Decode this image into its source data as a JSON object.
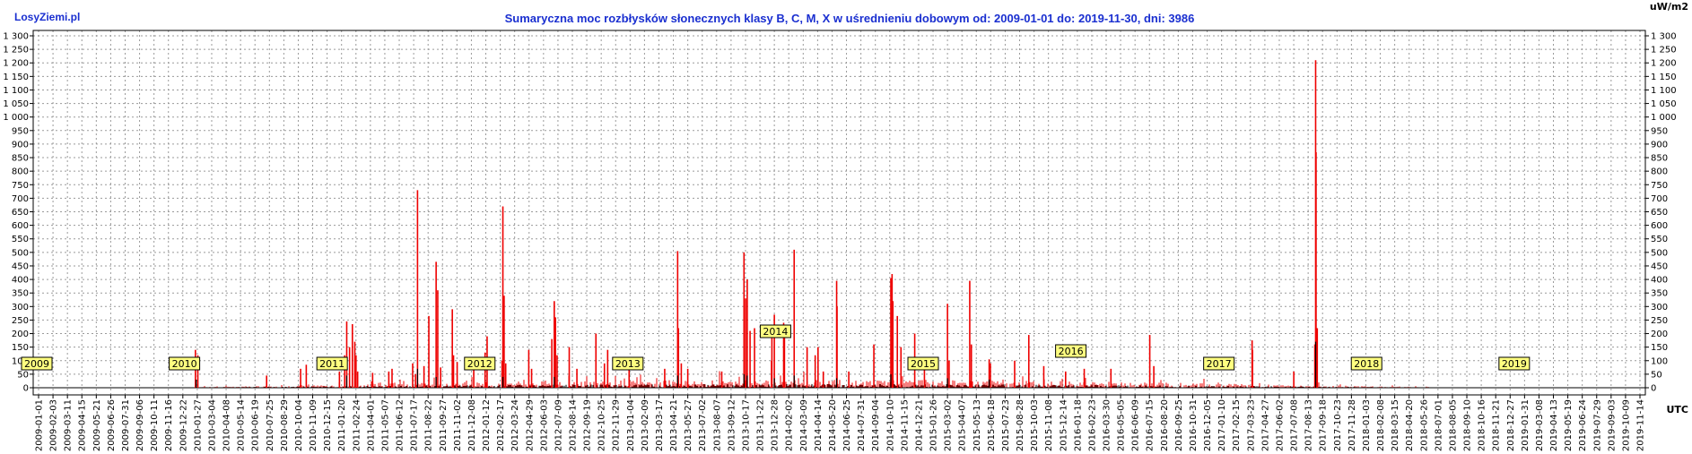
{
  "site_label": "LosyZiemi.pl",
  "y_unit": "uW/m2",
  "x_unit": "UTC",
  "chart_data": {
    "type": "line",
    "title": "Sumaryczna moc rozbłysków słonecznych klasy B, C, M, X w uśrednieniu dobowym od: 2009-01-01 do: 2019-11-30, dni: 3986",
    "xlabel": "UTC",
    "ylabel": "uW/m2",
    "ylim": [
      0,
      1300
    ],
    "xlim": [
      "2009-01-01",
      "2019-11-30"
    ],
    "grid": true,
    "legend": "none",
    "y_ticks": [
      0,
      50,
      100,
      150,
      200,
      250,
      300,
      350,
      400,
      450,
      500,
      550,
      600,
      650,
      700,
      750,
      800,
      850,
      900,
      950,
      1000,
      1050,
      1100,
      1150,
      1200,
      1250,
      1300
    ],
    "y_tick_labels": [
      "0",
      "50",
      "100",
      "150",
      "200",
      "250",
      "300",
      "350",
      "400",
      "450",
      "500",
      "550",
      "600",
      "650",
      "700",
      "750",
      "800",
      "850",
      "900",
      "950",
      "1 000",
      "1 050",
      "1 100",
      "1 150",
      "1 200",
      "1 250",
      "1 300"
    ],
    "x_tick_labels": [
      "2009-01-01",
      "2009-02-03",
      "2009-03-11",
      "2009-04-15",
      "2009-05-21",
      "2009-06-26",
      "2009-07-31",
      "2009-09-06",
      "2009-10-11",
      "2009-11-16",
      "2009-12-22",
      "2010-01-27",
      "2010-03-04",
      "2010-04-08",
      "2010-05-14",
      "2010-06-19",
      "2010-07-25",
      "2010-08-29",
      "2010-10-04",
      "2010-11-09",
      "2010-12-15",
      "2011-01-20",
      "2011-02-24",
      "2011-04-01",
      "2011-05-07",
      "2011-06-12",
      "2011-07-17",
      "2011-08-22",
      "2011-09-27",
      "2011-11-02",
      "2011-12-08",
      "2012-01-12",
      "2012-02-17",
      "2012-03-24",
      "2012-04-29",
      "2012-06-03",
      "2012-07-09",
      "2012-08-14",
      "2012-09-19",
      "2012-10-25",
      "2012-11-29",
      "2013-01-04",
      "2013-02-09",
      "2013-03-17",
      "2013-04-21",
      "2013-05-27",
      "2013-07-02",
      "2013-08-07",
      "2013-09-12",
      "2013-10-17",
      "2013-11-22",
      "2013-12-28",
      "2014-02-02",
      "2014-03-09",
      "2014-04-14",
      "2014-05-20",
      "2014-06-25",
      "2014-07-31",
      "2014-09-04",
      "2014-10-10",
      "2014-11-15",
      "2014-12-21",
      "2015-01-26",
      "2015-03-02",
      "2015-04-07",
      "2015-05-13",
      "2015-06-18",
      "2015-07-23",
      "2015-08-28",
      "2015-10-03",
      "2015-11-08",
      "2015-12-14",
      "2016-01-18",
      "2016-02-23",
      "2016-03-30",
      "2016-05-05",
      "2016-06-09",
      "2016-07-15",
      "2016-08-20",
      "2016-09-25",
      "2016-10-31",
      "2016-12-05",
      "2017-01-10",
      "2017-02-15",
      "2017-03-23",
      "2017-04-27",
      "2017-06-02",
      "2017-07-08",
      "2017-08-13",
      "2017-09-18",
      "2017-10-23",
      "2017-11-28",
      "2018-01-03",
      "2018-02-08",
      "2018-03-15",
      "2018-04-20",
      "2018-05-26",
      "2018-07-01",
      "2018-08-05",
      "2018-09-10",
      "2018-10-16",
      "2018-11-21",
      "2018-12-27",
      "2019-01-31",
      "2019-03-08",
      "2019-04-13",
      "2019-05-19",
      "2019-06-24",
      "2019-07-29",
      "2019-09-03",
      "2019-10-09",
      "2019-11-14"
    ],
    "year_labels": [
      "2009",
      "2010",
      "2011",
      "2012",
      "2013",
      "2014",
      "2015",
      "2016",
      "2017",
      "2018",
      "2019"
    ],
    "series": [
      {
        "color": "#ee0000",
        "points": [
          [
            "2010-02-06",
            140
          ],
          [
            "2010-02-12",
            120
          ],
          [
            "2010-08-01",
            45
          ],
          [
            "2010-10-24",
            70
          ],
          [
            "2010-11-07",
            85
          ],
          [
            "2011-01-28",
            60
          ],
          [
            "2011-02-10",
            120
          ],
          [
            "2011-02-15",
            245
          ],
          [
            "2011-02-22",
            150
          ],
          [
            "2011-03-01",
            235
          ],
          [
            "2011-03-07",
            170
          ],
          [
            "2011-03-10",
            120
          ],
          [
            "2011-03-14",
            60
          ],
          [
            "2011-04-20",
            55
          ],
          [
            "2011-05-30",
            60
          ],
          [
            "2011-06-07",
            70
          ],
          [
            "2011-07-28",
            90
          ],
          [
            "2011-08-04",
            50
          ],
          [
            "2011-08-09",
            730
          ],
          [
            "2011-08-25",
            80
          ],
          [
            "2011-09-06",
            265
          ],
          [
            "2011-09-24",
            465
          ],
          [
            "2011-09-28",
            360
          ],
          [
            "2011-10-05",
            75
          ],
          [
            "2011-11-03",
            290
          ],
          [
            "2011-11-06",
            120
          ],
          [
            "2011-11-15",
            95
          ],
          [
            "2011-12-26",
            80
          ],
          [
            "2012-01-23",
            130
          ],
          [
            "2012-01-28",
            190
          ],
          [
            "2012-03-05",
            100
          ],
          [
            "2012-03-07",
            670
          ],
          [
            "2012-03-10",
            340
          ],
          [
            "2012-03-14",
            90
          ],
          [
            "2012-05-10",
            140
          ],
          [
            "2012-05-17",
            70
          ],
          [
            "2012-07-06",
            180
          ],
          [
            "2012-07-12",
            320
          ],
          [
            "2012-07-15",
            260
          ],
          [
            "2012-07-19",
            120
          ],
          [
            "2012-08-18",
            150
          ],
          [
            "2012-09-06",
            70
          ],
          [
            "2012-10-23",
            200
          ],
          [
            "2012-11-13",
            90
          ],
          [
            "2012-11-21",
            140
          ],
          [
            "2013-01-13",
            65
          ],
          [
            "2013-04-11",
            70
          ],
          [
            "2013-05-13",
            505
          ],
          [
            "2013-05-15",
            220
          ],
          [
            "2013-05-22",
            90
          ],
          [
            "2013-06-07",
            70
          ],
          [
            "2013-08-30",
            60
          ],
          [
            "2013-10-24",
            500
          ],
          [
            "2013-10-28",
            330
          ],
          [
            "2013-11-01",
            400
          ],
          [
            "2013-11-08",
            210
          ],
          [
            "2013-11-19",
            220
          ],
          [
            "2013-12-31",
            100
          ],
          [
            "2014-01-01",
            200
          ],
          [
            "2014-01-07",
            270
          ],
          [
            "2014-01-30",
            240
          ],
          [
            "2014-02-01",
            205
          ],
          [
            "2014-02-25",
            510
          ],
          [
            "2014-03-29",
            150
          ],
          [
            "2014-04-18",
            120
          ],
          [
            "2014-04-25",
            150
          ],
          [
            "2014-05-08",
            60
          ],
          [
            "2014-06-10",
            395
          ],
          [
            "2014-06-11",
            300
          ],
          [
            "2014-07-10",
            60
          ],
          [
            "2014-09-10",
            160
          ],
          [
            "2014-10-22",
            405
          ],
          [
            "2014-10-25",
            420
          ],
          [
            "2014-10-27",
            320
          ],
          [
            "2014-11-07",
            265
          ],
          [
            "2014-11-16",
            150
          ],
          [
            "2014-12-20",
            200
          ],
          [
            "2015-01-13",
            70
          ],
          [
            "2015-03-11",
            310
          ],
          [
            "2015-03-15",
            100
          ],
          [
            "2015-05-05",
            395
          ],
          [
            "2015-05-09",
            160
          ],
          [
            "2015-06-22",
            105
          ],
          [
            "2015-06-25",
            90
          ],
          [
            "2015-08-24",
            100
          ],
          [
            "2015-09-28",
            195
          ],
          [
            "2015-11-04",
            80
          ],
          [
            "2015-12-28",
            60
          ],
          [
            "2016-02-12",
            70
          ],
          [
            "2016-04-18",
            70
          ],
          [
            "2016-07-23",
            195
          ],
          [
            "2016-08-02",
            80
          ],
          [
            "2017-04-02",
            175
          ],
          [
            "2017-04-03",
            140
          ],
          [
            "2017-07-14",
            60
          ],
          [
            "2017-09-04",
            160
          ],
          [
            "2017-09-06",
            1210
          ],
          [
            "2017-09-07",
            870
          ],
          [
            "2017-09-10",
            220
          ]
        ]
      },
      {
        "color": "#000000",
        "points": [
          [
            "2010-02-08",
            30
          ],
          [
            "2011-02-15",
            45
          ],
          [
            "2011-08-09",
            70
          ],
          [
            "2011-09-24",
            40
          ],
          [
            "2012-03-07",
            40
          ],
          [
            "2012-07-12",
            40
          ],
          [
            "2013-05-13",
            45
          ],
          [
            "2013-10-24",
            50
          ],
          [
            "2013-11-01",
            45
          ],
          [
            "2014-01-07",
            35
          ],
          [
            "2014-02-25",
            45
          ],
          [
            "2014-06-10",
            35
          ],
          [
            "2014-10-22",
            50
          ],
          [
            "2015-03-11",
            35
          ],
          [
            "2015-06-22",
            30
          ],
          [
            "2017-09-06",
            170
          ]
        ]
      }
    ]
  }
}
